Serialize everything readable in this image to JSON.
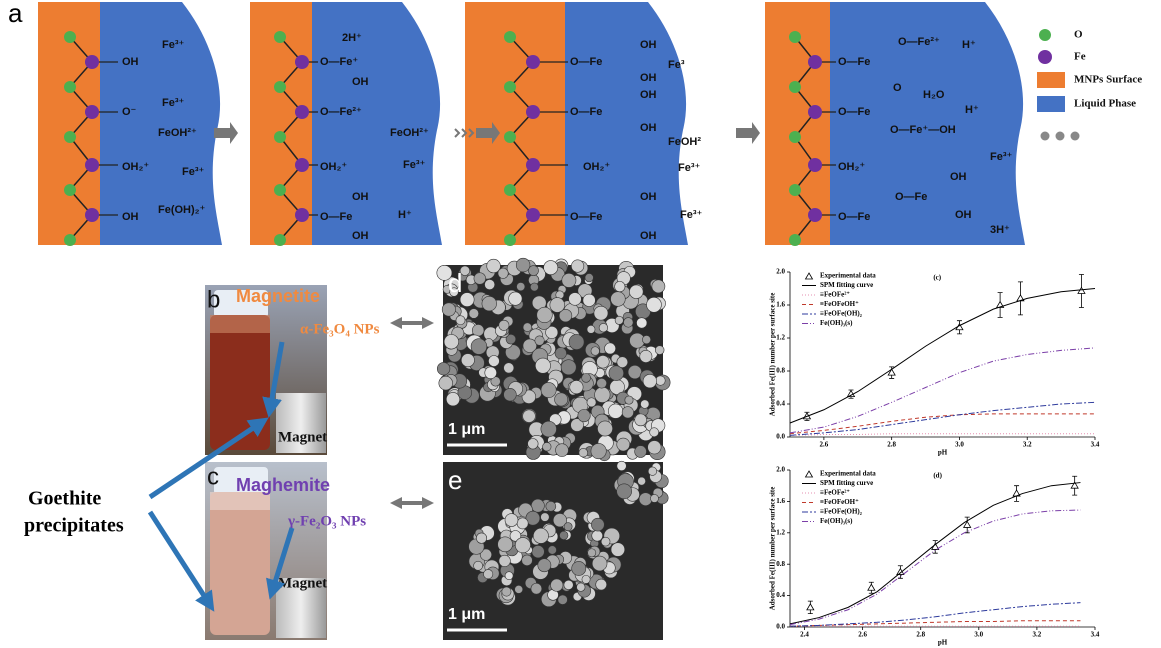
{
  "panel_a": {
    "label": "a",
    "panels": [
      {
        "labels": [
          "OH",
          "O⁻",
          "OH₂⁺",
          "OH",
          "Fe³⁺",
          "Fe³⁺",
          "FeOH²⁺",
          "Fe³⁺",
          "Fe(OH)₂⁺"
        ]
      },
      {
        "labels": [
          "O—Fe⁺",
          "OH",
          "O—Fe²⁺",
          "OH₂⁺",
          "O—Fe",
          "OH",
          "OH",
          "2H⁺",
          "FeOH²⁺",
          "Fe³⁺",
          "H⁺"
        ]
      },
      {
        "labels": [
          "O—Fe",
          "OH",
          "OH",
          "O—Fe",
          "OH",
          "OH",
          "OH₂⁺",
          "O—Fe",
          "OH",
          "OH",
          "Fe³",
          "FeOH²",
          "Fe³⁺",
          "Fe³⁺"
        ]
      },
      {
        "labels": [
          "O—Fe",
          "O—Fe²⁺",
          "O",
          "O—Fe",
          "O—Fe⁺—OH",
          "OH₂⁺",
          "O—Fe",
          "O—Fe",
          "OH",
          "OH",
          "H⁺",
          "H₂O",
          "H⁺",
          "Fe³⁺",
          "3H⁺"
        ]
      }
    ],
    "legend": [
      "O",
      "Fe",
      "MNPs Surface",
      "Liquid Phase"
    ]
  },
  "panel_b": {
    "label": "b",
    "name": "Magnetite",
    "particles": "α-Fe₃O₄ NPs",
    "magnet": "Magnet"
  },
  "panel_c": {
    "label": "c",
    "name": "Maghemite",
    "particles": "γ-Fe₂O₃ NPs",
    "magnet": "Magnet"
  },
  "panel_d": {
    "label": "d",
    "scale": "1 μm"
  },
  "panel_e": {
    "label": "e",
    "scale": "1 μm"
  },
  "annotation": [
    "Goethite",
    "precipitates"
  ],
  "chart_data": [
    {
      "type": "line",
      "title": "(c)",
      "x_label": "pH",
      "y_label": "Adsorbed Fe(III) number per surface site",
      "xlim": [
        2.5,
        3.4
      ],
      "xticks": [
        2.6,
        2.8,
        {
          "value": 3,
          "label": "3.0"
        },
        3.2,
        3.4
      ],
      "ylim": [
        0,
        2
      ],
      "yticks": [
        {
          "value": 0,
          "label": "0.0"
        },
        0.4,
        0.8,
        1.2,
        1.6,
        {
          "value": 2,
          "label": "2.0"
        }
      ],
      "series": [
        {
          "name": "Experimental data",
          "color": "#000000",
          "marker": "triangle",
          "x": [
            2.55,
            2.68,
            2.8,
            3.0,
            3.12,
            3.18,
            3.36
          ],
          "values": [
            0.25,
            0.52,
            0.78,
            1.33,
            1.6,
            1.68,
            1.77
          ],
          "errors": [
            0.05,
            0.05,
            0.07,
            0.08,
            0.15,
            0.2,
            0.2
          ]
        },
        {
          "name": "SPM fitting curve",
          "color": "#000000",
          "dash": "none",
          "x": [
            2.5,
            2.6,
            2.7,
            2.8,
            2.9,
            3.0,
            3.1,
            3.2,
            3.3,
            3.4
          ],
          "values": [
            0.17,
            0.33,
            0.55,
            0.82,
            1.1,
            1.35,
            1.55,
            1.68,
            1.76,
            1.8
          ]
        },
        {
          "name": "≡FeOFe²⁺",
          "color": "#e58fb0",
          "dash": "1,2",
          "x": [
            2.5,
            2.6,
            2.7,
            2.8,
            2.9,
            3.0,
            3.1,
            3.2,
            3.3,
            3.4
          ],
          "values": [
            0.02,
            0.03,
            0.03,
            0.04,
            0.04,
            0.04,
            0.04,
            0.04,
            0.04,
            0.04
          ]
        },
        {
          "name": "≡FeOFeOH⁺",
          "color": "#c0392b",
          "dash": "4,3",
          "x": [
            2.5,
            2.6,
            2.7,
            2.8,
            2.9,
            3.0,
            3.1,
            3.2,
            3.3,
            3.4
          ],
          "values": [
            0.04,
            0.08,
            0.13,
            0.19,
            0.24,
            0.27,
            0.28,
            0.28,
            0.28,
            0.28
          ]
        },
        {
          "name": "≡FeOFe(OH)₂",
          "color": "#2d3a9c",
          "dash": "6,2,2,2",
          "x": [
            2.5,
            2.6,
            2.7,
            2.8,
            2.9,
            3.0,
            3.1,
            3.2,
            3.3,
            3.4
          ],
          "values": [
            0.02,
            0.05,
            0.09,
            0.15,
            0.21,
            0.27,
            0.32,
            0.36,
            0.4,
            0.42
          ]
        },
        {
          "name": "Fe(OH)₃(s)",
          "color": "#7b3fa8",
          "dash": "6,2,1,2,1,2",
          "x": [
            2.5,
            2.6,
            2.7,
            2.8,
            2.9,
            3.0,
            3.1,
            3.2,
            3.3,
            3.4
          ],
          "values": [
            0.05,
            0.12,
            0.25,
            0.42,
            0.6,
            0.78,
            0.92,
            1.0,
            1.05,
            1.08
          ]
        }
      ]
    },
    {
      "type": "line",
      "title": "(d)",
      "x_label": "pH",
      "y_label": "Adsorbed Fe(III) number per surface site",
      "xlim": [
        2.35,
        3.4
      ],
      "xticks": [
        2.4,
        2.6,
        2.8,
        {
          "value": 3,
          "label": "3.0"
        },
        3.2,
        3.4
      ],
      "ylim": [
        0,
        2
      ],
      "yticks": [
        {
          "value": 0,
          "label": "0.0"
        },
        0.4,
        0.8,
        1.2,
        1.6,
        {
          "value": 2,
          "label": "2.0"
        }
      ],
      "series": [
        {
          "name": "Experimental data",
          "color": "#000000",
          "marker": "triangle",
          "x": [
            2.42,
            2.63,
            2.73,
            2.85,
            2.96,
            3.13,
            3.33
          ],
          "values": [
            0.25,
            0.5,
            0.7,
            1.02,
            1.3,
            1.7,
            1.8
          ],
          "errors": [
            0.08,
            0.07,
            0.08,
            0.08,
            0.1,
            0.1,
            0.12
          ]
        },
        {
          "name": "SPM fitting curve",
          "color": "#000000",
          "dash": "none",
          "x": [
            2.35,
            2.45,
            2.55,
            2.65,
            2.75,
            2.85,
            2.95,
            3.05,
            3.15,
            3.25,
            3.35
          ],
          "values": [
            0.04,
            0.12,
            0.25,
            0.45,
            0.75,
            1.05,
            1.33,
            1.55,
            1.7,
            1.8,
            1.84
          ]
        },
        {
          "name": "≡FeOFe²⁺",
          "color": "#e58fb0",
          "dash": "1,2",
          "x": [
            2.35,
            2.45,
            2.55,
            2.65,
            2.75,
            2.85,
            2.95,
            3.05,
            3.15,
            3.25,
            3.35
          ],
          "values": [
            0.01,
            0.01,
            0.01,
            0.01,
            0.01,
            0.01,
            0.01,
            0.01,
            0.01,
            0.01,
            0.01
          ]
        },
        {
          "name": "≡FeOFeOH⁺",
          "color": "#c0392b",
          "dash": "4,3",
          "x": [
            2.35,
            2.45,
            2.55,
            2.65,
            2.75,
            2.85,
            2.95,
            3.05,
            3.15,
            3.25,
            3.35
          ],
          "values": [
            0.01,
            0.02,
            0.03,
            0.04,
            0.05,
            0.06,
            0.07,
            0.07,
            0.08,
            0.08,
            0.08
          ]
        },
        {
          "name": "≡FeOFe(OH)₂",
          "color": "#2d3a9c",
          "dash": "6,2,2,2",
          "x": [
            2.35,
            2.45,
            2.55,
            2.65,
            2.75,
            2.85,
            2.95,
            3.05,
            3.15,
            3.25,
            3.35
          ],
          "values": [
            0.01,
            0.02,
            0.04,
            0.06,
            0.09,
            0.13,
            0.18,
            0.22,
            0.26,
            0.29,
            0.31
          ]
        },
        {
          "name": "Fe(OH)₃(s)",
          "color": "#7b3fa8",
          "dash": "6,2,1,2,1,2",
          "x": [
            2.35,
            2.45,
            2.55,
            2.65,
            2.75,
            2.85,
            2.95,
            3.05,
            3.15,
            3.25,
            3.35
          ],
          "values": [
            0.03,
            0.1,
            0.22,
            0.42,
            0.7,
            0.98,
            1.2,
            1.35,
            1.44,
            1.48,
            1.49
          ]
        }
      ]
    }
  ]
}
